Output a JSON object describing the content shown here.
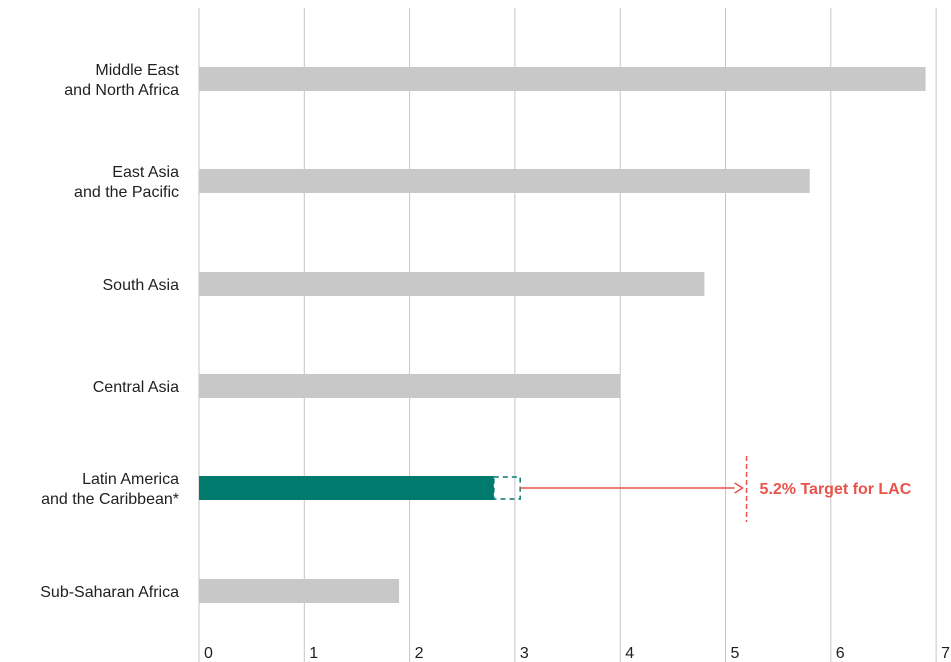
{
  "chart_data": {
    "type": "bar",
    "orientation": "horizontal",
    "categories": [
      [
        "Middle East",
        "and North Africa"
      ],
      [
        "East Asia",
        "and the Pacific"
      ],
      [
        "South Asia"
      ],
      [
        "Central Asia"
      ],
      [
        "Latin America",
        "and the Caribbean*"
      ],
      [
        "Sub-Saharan Africa"
      ]
    ],
    "values": [
      6.9,
      5.8,
      4.8,
      4.0,
      2.8,
      1.9
    ],
    "highlight_index": 4,
    "highlight_extension_to": 3.05,
    "xlim": [
      0,
      7
    ],
    "x_ticks": [
      "0",
      "1",
      "2",
      "3",
      "4",
      "5",
      "6",
      "7"
    ],
    "grid": true,
    "target": {
      "value": 5.2,
      "label": "5.2% Target for LAC"
    },
    "colors": {
      "bar": "#c8c8c8",
      "highlight": "#007a6c",
      "target": "#e8534a",
      "grid": "#c4c4c4",
      "text": "#1f1f1f"
    }
  }
}
